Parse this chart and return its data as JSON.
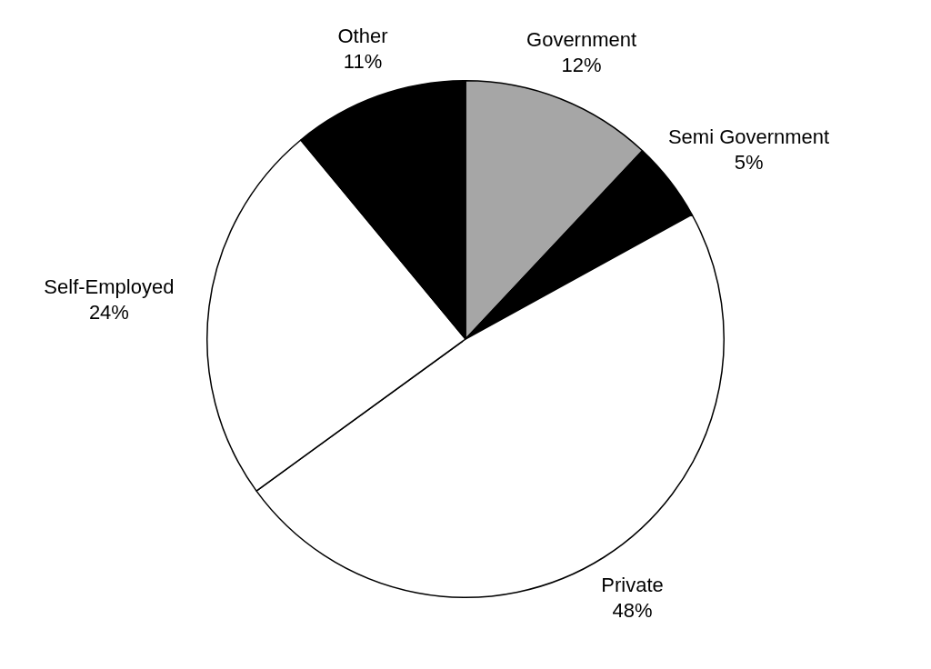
{
  "chart_data": {
    "type": "pie",
    "categories": [
      "Government",
      "Semi Government",
      "Private",
      "Self-Employed",
      "Other"
    ],
    "values": [
      12,
      5,
      48,
      24,
      11
    ],
    "value_labels": [
      "12%",
      "5%",
      "48%",
      "24%",
      "11%"
    ],
    "colors": [
      "#a6a6a6",
      "#000000",
      "#ffffff",
      "#ffffff",
      "#000000"
    ],
    "legend": false
  }
}
